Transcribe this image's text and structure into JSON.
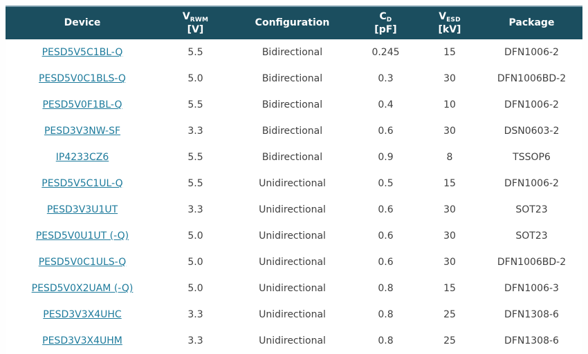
{
  "table": {
    "columns": {
      "device": {
        "label": "Device"
      },
      "vrwm": {
        "symbol": "V",
        "sub": "RWM",
        "unit": "[V]"
      },
      "configuration": {
        "label": "Configuration"
      },
      "cd": {
        "symbol": "C",
        "sub": "D",
        "unit": "[pF]"
      },
      "vesd": {
        "symbol": "V",
        "sub": "ESD",
        "unit": "[kV]"
      },
      "package": {
        "label": "Package"
      }
    },
    "rows": [
      {
        "device": "PESD5V5C1BL-Q",
        "vrwm": "5.5",
        "configuration": "Bidirectional",
        "cd": "0.245",
        "vesd": "15",
        "package": "DFN1006-2"
      },
      {
        "device": "PESD5V0C1BLS-Q",
        "vrwm": "5.0",
        "configuration": "Bidirectional",
        "cd": "0.3",
        "vesd": "30",
        "package": "DFN1006BD-2"
      },
      {
        "device": "PESD5V0F1BL-Q",
        "vrwm": "5.5",
        "configuration": "Bidirectional",
        "cd": "0.4",
        "vesd": "10",
        "package": "DFN1006-2"
      },
      {
        "device": "PESD3V3NW-SF",
        "vrwm": "3.3",
        "configuration": "Bidirectional",
        "cd": "0.6",
        "vesd": "30",
        "package": "DSN0603-2"
      },
      {
        "device": "IP4233CZ6",
        "vrwm": "5.5",
        "configuration": "Bidirectional",
        "cd": "0.9",
        "vesd": "8",
        "package": "TSSOP6"
      },
      {
        "device": "PESD5V5C1UL-Q",
        "vrwm": "5.5",
        "configuration": "Unidirectional",
        "cd": "0.5",
        "vesd": "15",
        "package": "DFN1006-2"
      },
      {
        "device": "PESD3V3U1UT",
        "vrwm": "3.3",
        "configuration": "Unidirectional",
        "cd": "0.6",
        "vesd": "30",
        "package": "SOT23"
      },
      {
        "device": "PESD5V0U1UT (-Q)",
        "vrwm": "5.0",
        "configuration": "Unidirectional",
        "cd": "0.6",
        "vesd": "30",
        "package": "SOT23"
      },
      {
        "device": "PESD5V0C1ULS-Q",
        "vrwm": "5.0",
        "configuration": "Unidirectional",
        "cd": "0.6",
        "vesd": "30",
        "package": "DFN1006BD-2"
      },
      {
        "device": "PESD5V0X2UAM (-Q)",
        "vrwm": "5.0",
        "configuration": "Unidirectional",
        "cd": "0.8",
        "vesd": "15",
        "package": "DFN1006-3"
      },
      {
        "device": "PESD3V3X4UHC",
        "vrwm": "3.3",
        "configuration": "Unidirectional",
        "cd": "0.8",
        "vesd": "25",
        "package": "DFN1308-6"
      },
      {
        "device": "PESD3V3X4UHM",
        "vrwm": "3.3",
        "configuration": "Unidirectional",
        "cd": "0.8",
        "vesd": "25",
        "package": "DFN1308-6"
      }
    ]
  },
  "colors": {
    "header_bg": "#1b4e5f",
    "header_top_edge": "#7fa0af",
    "header_text": "#ffffff",
    "link": "#1e7b9c",
    "body_text": "#404040",
    "row_bg": "#ffffff"
  }
}
